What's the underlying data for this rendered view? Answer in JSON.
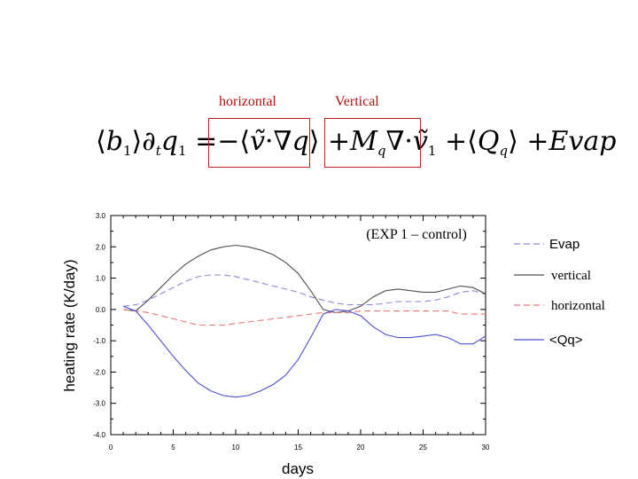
{
  "header": {
    "label_horizontal": "horizontal",
    "label_vertical": "Vertical"
  },
  "equation": {
    "lhs": "⟨b₁⟩∂ₜq₁ = −⟨ṽ·∇q⟩ + M_q∇·ṽ₁ + ⟨Q_q⟩ + Evap"
  },
  "colors": {
    "box_red": "#c02020",
    "label_red": "#b01010",
    "evap": "#8c8cd2",
    "vertical": "#505050",
    "horizontal": "#e87878",
    "qq": "#5050d2"
  },
  "chart_data": {
    "type": "line",
    "title": "(EXP 1 – control)",
    "xlabel": "days",
    "ylabel": "heating rate (K/day)",
    "xlim": [
      0,
      30
    ],
    "ylim": [
      -4.0,
      3.0
    ],
    "xticks": [
      0,
      5,
      10,
      15,
      20,
      25,
      30
    ],
    "yticks": [
      -4.0,
      -3.0,
      -2.0,
      -1.0,
      0.0,
      1.0,
      2.0,
      3.0
    ],
    "ytick_labels": [
      "-4.0",
      "-3.0",
      "-2.0",
      "-1.0",
      "0.0",
      "1.0",
      "2.0",
      "3.0"
    ],
    "grid": false,
    "legend_position": "right",
    "series": [
      {
        "name": "Evap",
        "style": "dash",
        "color": "#8c8cd2",
        "x": [
          1,
          2,
          3,
          4,
          5,
          6,
          7,
          8,
          9,
          10,
          11,
          12,
          13,
          14,
          15,
          16,
          17,
          18,
          19,
          20,
          21,
          22,
          23,
          24,
          25,
          26,
          27,
          28,
          29,
          30
        ],
        "y": [
          0.1,
          0.15,
          0.3,
          0.5,
          0.7,
          0.9,
          1.05,
          1.1,
          1.1,
          1.05,
          0.95,
          0.85,
          0.75,
          0.65,
          0.55,
          0.4,
          0.3,
          0.2,
          0.15,
          0.15,
          0.15,
          0.2,
          0.25,
          0.25,
          0.25,
          0.3,
          0.4,
          0.55,
          0.6,
          0.5
        ]
      },
      {
        "name": "vertical",
        "style": "solid",
        "color": "#505050",
        "x": [
          1,
          2,
          3,
          4,
          5,
          6,
          7,
          8,
          9,
          10,
          11,
          12,
          13,
          14,
          15,
          16,
          17,
          18,
          19,
          20,
          21,
          22,
          23,
          24,
          25,
          26,
          27,
          28,
          29,
          30
        ],
        "y": [
          0.0,
          -0.05,
          0.3,
          0.7,
          1.1,
          1.45,
          1.7,
          1.9,
          2.0,
          2.05,
          2.0,
          1.9,
          1.75,
          1.5,
          1.15,
          0.6,
          0.0,
          -0.1,
          -0.05,
          0.1,
          0.4,
          0.6,
          0.65,
          0.6,
          0.55,
          0.55,
          0.65,
          0.75,
          0.7,
          0.5
        ]
      },
      {
        "name": "horizontal",
        "style": "dash",
        "color": "#e87878",
        "x": [
          1,
          2,
          3,
          4,
          5,
          6,
          7,
          8,
          9,
          10,
          11,
          12,
          13,
          14,
          15,
          16,
          17,
          18,
          19,
          20,
          21,
          22,
          23,
          24,
          25,
          26,
          27,
          28,
          29,
          30
        ],
        "y": [
          0.0,
          -0.05,
          -0.1,
          -0.2,
          -0.3,
          -0.4,
          -0.5,
          -0.5,
          -0.5,
          -0.45,
          -0.4,
          -0.35,
          -0.3,
          -0.25,
          -0.2,
          -0.15,
          -0.1,
          -0.1,
          -0.1,
          -0.05,
          -0.05,
          -0.05,
          -0.05,
          -0.05,
          -0.05,
          -0.05,
          -0.05,
          -0.15,
          -0.15,
          -0.15
        ]
      },
      {
        "name": "<Qq>",
        "style": "solid",
        "color": "#5050d2",
        "x": [
          1,
          2,
          3,
          4,
          5,
          6,
          7,
          8,
          9,
          10,
          11,
          12,
          13,
          14,
          15,
          16,
          17,
          18,
          19,
          20,
          21,
          22,
          23,
          24,
          25,
          26,
          27,
          28,
          29,
          30
        ],
        "y": [
          0.1,
          -0.05,
          -0.5,
          -1.0,
          -1.5,
          -1.95,
          -2.35,
          -2.6,
          -2.75,
          -2.8,
          -2.75,
          -2.6,
          -2.4,
          -2.1,
          -1.6,
          -0.9,
          -0.15,
          0.0,
          -0.05,
          -0.2,
          -0.55,
          -0.8,
          -0.9,
          -0.9,
          -0.85,
          -0.8,
          -0.9,
          -1.1,
          -1.1,
          -0.85
        ]
      }
    ]
  }
}
